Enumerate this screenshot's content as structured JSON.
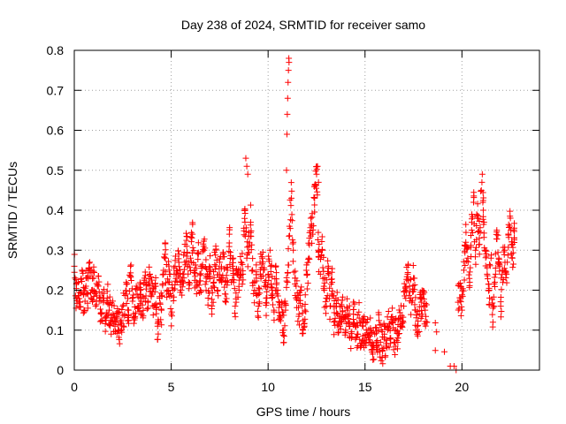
{
  "chart_data": {
    "type": "scatter",
    "title": "Day 238 of 2024, SRMTID for receiver samo",
    "xlabel": "GPS time / hours",
    "ylabel": "SRMTID / TECUs",
    "xlim": [
      0,
      24
    ],
    "ylim": [
      0,
      0.8
    ],
    "xticks": [
      "0",
      "5",
      "10",
      "15",
      "20"
    ],
    "yticks": [
      "0",
      "0.1",
      "0.2",
      "0.3",
      "0.4",
      "0.5",
      "0.6",
      "0.7",
      "0.8"
    ],
    "grid": true,
    "marker": "+",
    "series": [
      {
        "name": "SRMTID",
        "color": "#ff0000",
        "points": [
          [
            0.0,
            0.26
          ],
          [
            0.1,
            0.18
          ],
          [
            0.2,
            0.22
          ],
          [
            0.3,
            0.17
          ],
          [
            0.4,
            0.25
          ],
          [
            0.5,
            0.15
          ],
          [
            0.6,
            0.21
          ],
          [
            0.7,
            0.19
          ],
          [
            0.8,
            0.27
          ],
          [
            0.9,
            0.2
          ],
          [
            1.0,
            0.23
          ],
          [
            1.1,
            0.16
          ],
          [
            1.2,
            0.21
          ],
          [
            1.3,
            0.18
          ],
          [
            1.4,
            0.14
          ],
          [
            1.5,
            0.17
          ],
          [
            1.6,
            0.13
          ],
          [
            1.7,
            0.18
          ],
          [
            1.8,
            0.15
          ],
          [
            1.9,
            0.12
          ],
          [
            2.0,
            0.14
          ],
          [
            2.1,
            0.11
          ],
          [
            2.2,
            0.13
          ],
          [
            2.3,
            0.1
          ],
          [
            2.4,
            0.12
          ],
          [
            2.5,
            0.16
          ],
          [
            2.6,
            0.14
          ],
          [
            2.7,
            0.19
          ],
          [
            2.8,
            0.15
          ],
          [
            2.9,
            0.26
          ],
          [
            3.0,
            0.18
          ],
          [
            3.1,
            0.13
          ],
          [
            3.2,
            0.21
          ],
          [
            3.3,
            0.16
          ],
          [
            3.4,
            0.2
          ],
          [
            3.5,
            0.14
          ],
          [
            3.6,
            0.18
          ],
          [
            3.7,
            0.22
          ],
          [
            3.8,
            0.17
          ],
          [
            3.9,
            0.24
          ],
          [
            4.0,
            0.19
          ],
          [
            4.1,
            0.16
          ],
          [
            4.2,
            0.21
          ],
          [
            4.3,
            0.11
          ],
          [
            4.4,
            0.18
          ],
          [
            4.5,
            0.15
          ],
          [
            4.6,
            0.24
          ],
          [
            4.7,
            0.28
          ],
          [
            4.8,
            0.2
          ],
          [
            4.9,
            0.25
          ],
          [
            5.0,
            0.14
          ],
          [
            5.1,
            0.2
          ],
          [
            5.2,
            0.26
          ],
          [
            5.3,
            0.22
          ],
          [
            5.4,
            0.29
          ],
          [
            5.5,
            0.2
          ],
          [
            5.6,
            0.24
          ],
          [
            5.7,
            0.27
          ],
          [
            5.8,
            0.31
          ],
          [
            5.9,
            0.22
          ],
          [
            6.0,
            0.28
          ],
          [
            6.1,
            0.34
          ],
          [
            6.2,
            0.25
          ],
          [
            6.3,
            0.21
          ],
          [
            6.4,
            0.29
          ],
          [
            6.5,
            0.2
          ],
          [
            6.6,
            0.26
          ],
          [
            6.7,
            0.3
          ],
          [
            6.8,
            0.23
          ],
          [
            6.9,
            0.18
          ],
          [
            7.0,
            0.25
          ],
          [
            7.1,
            0.14
          ],
          [
            7.2,
            0.22
          ],
          [
            7.3,
            0.31
          ],
          [
            7.4,
            0.2
          ],
          [
            7.5,
            0.27
          ],
          [
            7.6,
            0.23
          ],
          [
            7.7,
            0.29
          ],
          [
            7.8,
            0.19
          ],
          [
            7.9,
            0.25
          ],
          [
            8.0,
            0.34
          ],
          [
            8.1,
            0.22
          ],
          [
            8.2,
            0.28
          ],
          [
            8.3,
            0.16
          ],
          [
            8.4,
            0.24
          ],
          [
            8.5,
            0.2
          ],
          [
            8.6,
            0.27
          ],
          [
            8.7,
            0.24
          ],
          [
            8.8,
            0.4
          ],
          [
            8.9,
            0.28
          ],
          [
            9.0,
            0.31
          ],
          [
            9.1,
            0.37
          ],
          [
            9.2,
            0.25
          ],
          [
            9.3,
            0.2
          ],
          [
            9.4,
            0.23
          ],
          [
            9.5,
            0.16
          ],
          [
            9.6,
            0.24
          ],
          [
            9.7,
            0.28
          ],
          [
            9.8,
            0.21
          ],
          [
            9.9,
            0.18
          ],
          [
            10.0,
            0.24
          ],
          [
            10.1,
            0.3
          ],
          [
            10.2,
            0.2
          ],
          [
            10.3,
            0.15
          ],
          [
            10.4,
            0.26
          ],
          [
            10.5,
            0.2
          ],
          [
            10.6,
            0.13
          ],
          [
            10.7,
            0.17
          ],
          [
            10.8,
            0.1
          ],
          [
            10.9,
            0.15
          ],
          [
            11.0,
            0.22
          ],
          [
            11.1,
            0.36
          ],
          [
            11.2,
            0.43
          ],
          [
            11.3,
            0.3
          ],
          [
            11.4,
            0.23
          ],
          [
            11.5,
            0.18
          ],
          [
            11.6,
            0.14
          ],
          [
            11.7,
            0.2
          ],
          [
            11.8,
            0.1
          ],
          [
            11.9,
            0.15
          ],
          [
            12.0,
            0.24
          ],
          [
            12.1,
            0.28
          ],
          [
            12.2,
            0.38
          ],
          [
            12.3,
            0.34
          ],
          [
            12.4,
            0.43
          ],
          [
            12.5,
            0.49
          ],
          [
            12.6,
            0.3
          ],
          [
            12.7,
            0.24
          ],
          [
            12.8,
            0.3
          ],
          [
            12.9,
            0.2
          ],
          [
            13.0,
            0.18
          ],
          [
            13.1,
            0.26
          ],
          [
            13.2,
            0.16
          ],
          [
            13.3,
            0.22
          ],
          [
            13.4,
            0.12
          ],
          [
            13.5,
            0.18
          ],
          [
            13.6,
            0.14
          ],
          [
            13.7,
            0.11
          ],
          [
            13.8,
            0.16
          ],
          [
            13.9,
            0.13
          ],
          [
            14.0,
            0.1
          ],
          [
            14.1,
            0.15
          ],
          [
            14.2,
            0.12
          ],
          [
            14.3,
            0.08
          ],
          [
            14.4,
            0.14
          ],
          [
            14.5,
            0.11
          ],
          [
            14.6,
            0.09
          ],
          [
            14.7,
            0.13
          ],
          [
            14.8,
            0.06
          ],
          [
            14.9,
            0.11
          ],
          [
            15.0,
            0.08
          ],
          [
            15.1,
            0.12
          ],
          [
            15.2,
            0.07
          ],
          [
            15.3,
            0.1
          ],
          [
            15.4,
            0.04
          ],
          [
            15.5,
            0.09
          ],
          [
            15.6,
            0.06
          ],
          [
            15.7,
            0.1
          ],
          [
            15.8,
            0.07
          ],
          [
            15.9,
            0.05
          ],
          [
            16.0,
            0.09
          ],
          [
            16.1,
            0.06
          ],
          [
            16.2,
            0.11
          ],
          [
            16.3,
            0.08
          ],
          [
            16.4,
            0.12
          ],
          [
            16.5,
            0.07
          ],
          [
            16.6,
            0.1
          ],
          [
            16.7,
            0.08
          ],
          [
            16.8,
            0.13
          ],
          [
            16.9,
            0.11
          ],
          [
            17.0,
            0.16
          ],
          [
            17.1,
            0.2
          ],
          [
            17.2,
            0.24
          ],
          [
            17.3,
            0.21
          ],
          [
            17.4,
            0.17
          ],
          [
            17.5,
            0.23
          ],
          [
            17.6,
            0.15
          ],
          [
            17.7,
            0.11
          ],
          [
            17.8,
            0.14
          ],
          [
            17.9,
            0.17
          ],
          [
            18.0,
            0.19
          ],
          [
            18.1,
            0.15
          ],
          [
            18.2,
            0.12
          ],
          [
            19.7,
            0.0
          ],
          [
            19.8,
            0.17
          ],
          [
            19.9,
            0.21
          ],
          [
            20.0,
            0.15
          ],
          [
            20.1,
            0.25
          ],
          [
            20.2,
            0.32
          ],
          [
            20.3,
            0.28
          ],
          [
            20.4,
            0.22
          ],
          [
            20.5,
            0.35
          ],
          [
            20.6,
            0.42
          ],
          [
            20.7,
            0.3
          ],
          [
            20.8,
            0.38
          ],
          [
            20.9,
            0.33
          ],
          [
            21.0,
            0.45
          ],
          [
            21.1,
            0.4
          ],
          [
            21.2,
            0.3
          ],
          [
            21.3,
            0.24
          ],
          [
            21.4,
            0.2
          ],
          [
            21.5,
            0.28
          ],
          [
            21.6,
            0.12
          ],
          [
            21.7,
            0.22
          ],
          [
            21.8,
            0.35
          ],
          [
            21.9,
            0.28
          ],
          [
            22.0,
            0.16
          ],
          [
            22.1,
            0.25
          ],
          [
            22.2,
            0.3
          ],
          [
            22.3,
            0.24
          ],
          [
            22.4,
            0.34
          ],
          [
            22.5,
            0.38
          ],
          [
            22.6,
            0.28
          ],
          [
            22.7,
            0.33
          ]
        ],
        "spike": [
          [
            10.95,
            0.5
          ],
          [
            10.97,
            0.59
          ],
          [
            10.99,
            0.64
          ],
          [
            11.01,
            0.68
          ],
          [
            11.03,
            0.72
          ],
          [
            11.05,
            0.75
          ],
          [
            11.07,
            0.78
          ],
          [
            11.08,
            0.77
          ],
          [
            8.85,
            0.53
          ],
          [
            8.9,
            0.51
          ],
          [
            8.95,
            0.49
          ],
          [
            12.55,
            0.51
          ],
          [
            12.6,
            0.47
          ],
          [
            21.05,
            0.49
          ]
        ]
      }
    ]
  }
}
